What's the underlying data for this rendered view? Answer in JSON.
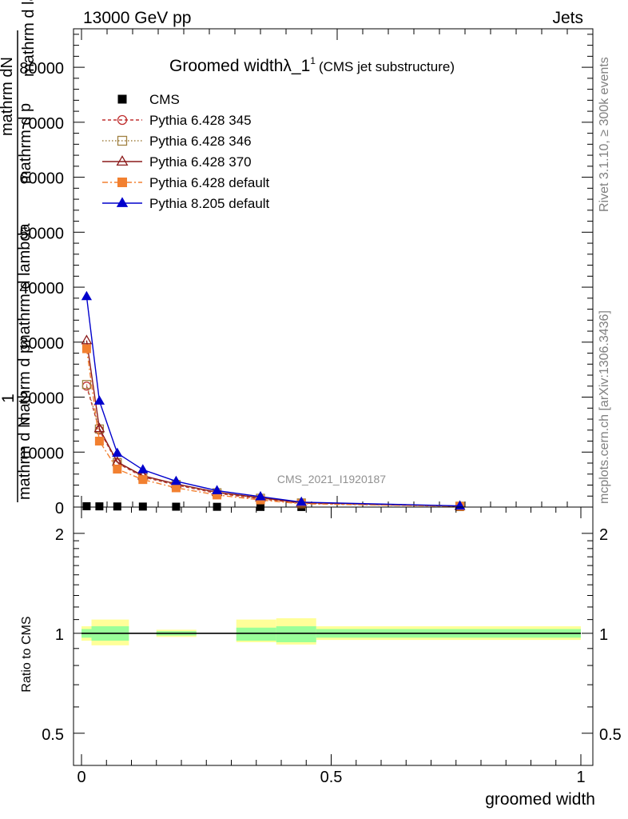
{
  "header": {
    "left": "13000 GeV pp",
    "right": "Jets"
  },
  "side": {
    "rivet": "Rivet 3.1.10, ≥ 300k events",
    "mcplots": "mcplots.cern.ch [arXiv:1306.3436]"
  },
  "chart_data": [
    {
      "type": "line",
      "title": "Groomed widthλ_1",
      "title_sup": "1",
      "subtitle": "(CMS jet substructure)",
      "watermark": "CMS_2021_I1920187",
      "ylabel_numerator": "1",
      "ylabel_lines": [
        "mathrm dN",
        "mathrm d p",
        "mathrm d lambda",
        "mathrm d N",
        "mathrm d p",
        "mathrm d lambda"
      ],
      "xlim": [
        0,
        1
      ],
      "ylim": [
        0,
        87000
      ],
      "y_ticks": [
        0,
        10000,
        20000,
        30000,
        40000,
        50000,
        60000,
        70000,
        80000
      ],
      "legend_position": "top-left",
      "x": [
        0.01,
        0.035,
        0.07,
        0.12,
        0.185,
        0.265,
        0.35,
        0.43,
        0.74
      ],
      "series": [
        {
          "name": "CMS",
          "color": "#000000",
          "marker": "square",
          "values": [
            150,
            130,
            110,
            90,
            70,
            50,
            30,
            15,
            5
          ]
        },
        {
          "name": "Pythia 6.428 345",
          "color": "#c03030",
          "marker": "open-circle",
          "dash": "4,3",
          "values": [
            22000,
            14000,
            8000,
            5500,
            4000,
            2500,
            1500,
            700,
            150
          ]
        },
        {
          "name": "Pythia 6.428 346",
          "color": "#a08040",
          "marker": "open-square",
          "dash": "1.5,2.5",
          "values": [
            22300,
            14200,
            8100,
            5600,
            4100,
            2600,
            1600,
            750,
            160
          ]
        },
        {
          "name": "Pythia 6.428 370",
          "color": "#8b1a1a",
          "marker": "open-triangle",
          "dash": "",
          "values": [
            30300,
            14300,
            8200,
            5700,
            4200,
            2700,
            1700,
            800,
            170
          ]
        },
        {
          "name": "Pythia 6.428 default",
          "color": "#f28030",
          "marker": "filled-square",
          "dash": "7,3,2,3",
          "values": [
            28800,
            12000,
            6900,
            5000,
            3500,
            2200,
            1300,
            600,
            120
          ]
        },
        {
          "name": "Pythia 8.205 default",
          "color": "#0000cc",
          "marker": "filled-triangle",
          "dash": "",
          "values": [
            38300,
            19300,
            9800,
            6800,
            4700,
            3000,
            1900,
            900,
            200
          ]
        }
      ]
    },
    {
      "type": "line",
      "ylabel": "Ratio to CMS",
      "xlabel": "groomed width",
      "xlim": [
        0,
        1
      ],
      "ylim": [
        0.4,
        2.4
      ],
      "y_scale": "log",
      "y_tick_labels": [
        "0.5",
        "1",
        "2"
      ],
      "x_tick_labels": [
        "0",
        "0.5",
        "1"
      ],
      "reference": 1,
      "bands": [
        {
          "x": [
            0.0,
            0.02
          ],
          "green": [
            0.97,
            1.03
          ],
          "yellow": [
            0.95,
            1.05
          ]
        },
        {
          "x": [
            0.02,
            0.095
          ],
          "green": [
            0.95,
            1.05
          ],
          "yellow": [
            0.92,
            1.1
          ]
        },
        {
          "x": [
            0.15,
            0.23
          ],
          "green": [
            0.985,
            1.015
          ],
          "yellow": [
            0.975,
            1.025
          ]
        },
        {
          "x": [
            0.31,
            0.39
          ],
          "green": [
            0.95,
            1.04
          ],
          "yellow": [
            0.94,
            1.1
          ]
        },
        {
          "x": [
            0.39,
            0.47
          ],
          "green": [
            0.94,
            1.05
          ],
          "yellow": [
            0.925,
            1.11
          ]
        },
        {
          "x": [
            0.47,
            1.0
          ],
          "green": [
            0.97,
            1.03
          ],
          "yellow": [
            0.955,
            1.05
          ]
        }
      ]
    }
  ]
}
